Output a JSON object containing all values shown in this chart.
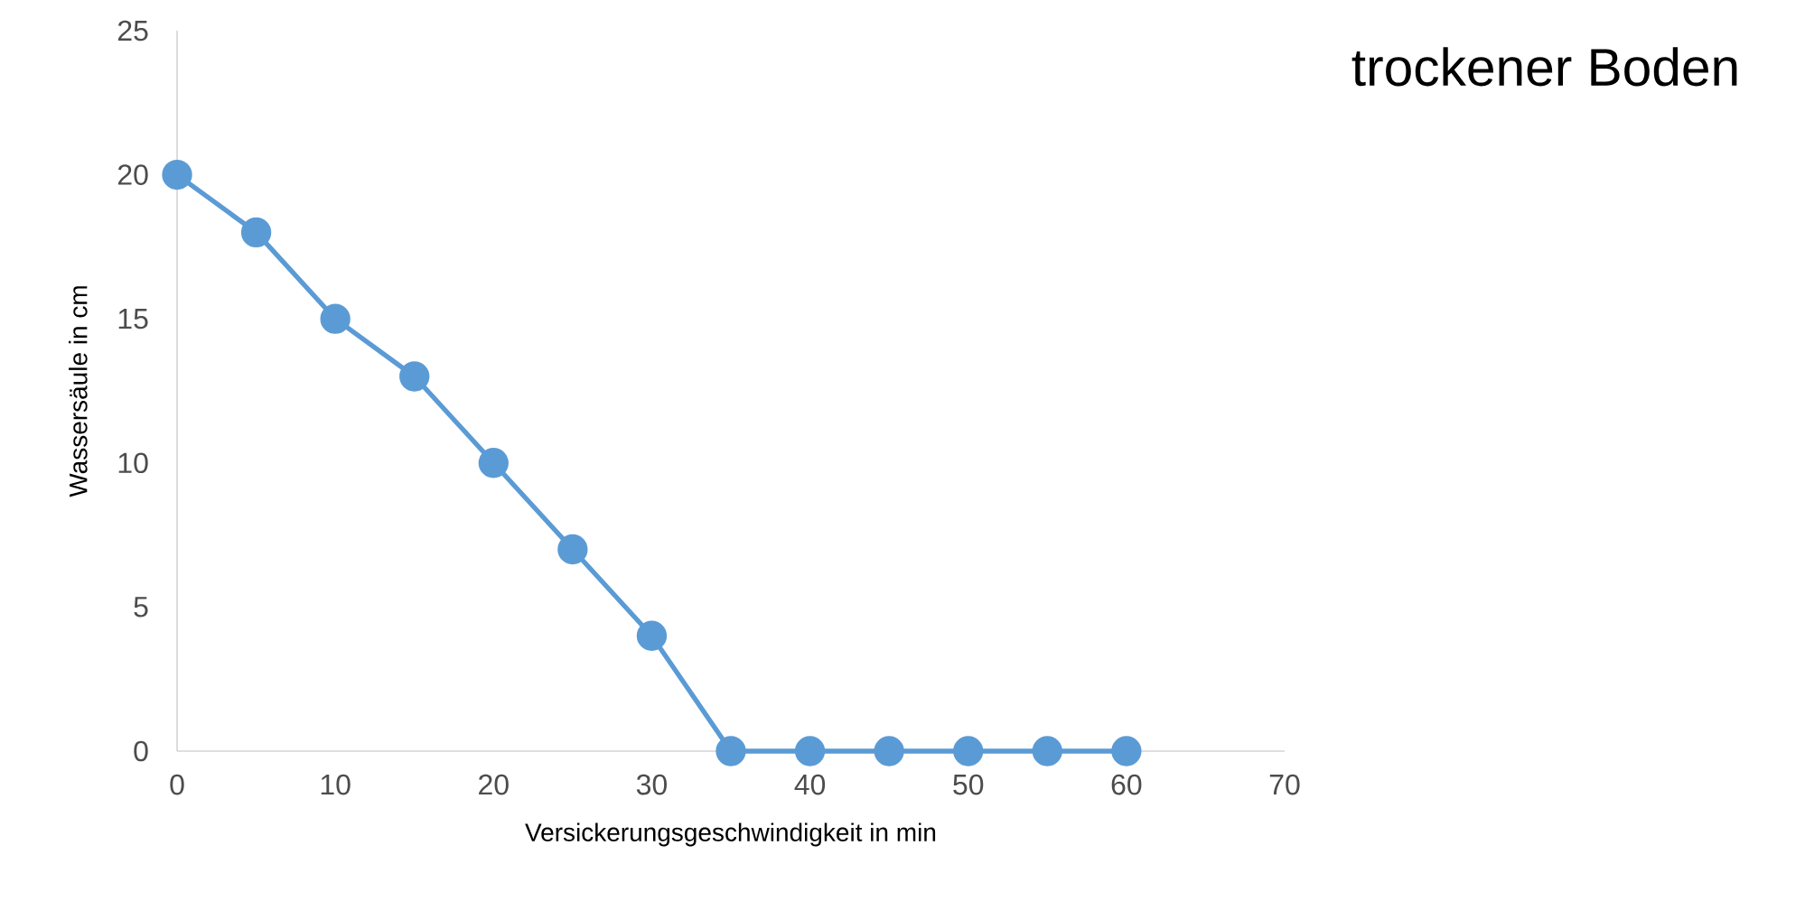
{
  "chart_data": {
    "type": "line",
    "title": "trockener Boden",
    "xlabel": "Versickerungsgeschwindigkeit in min",
    "ylabel": "Wassersäule in cm",
    "x": [
      0,
      5,
      10,
      15,
      20,
      25,
      30,
      35,
      40,
      45,
      50,
      55,
      60
    ],
    "series": [
      {
        "color": "#5b9bd5",
        "values": [
          20,
          18,
          15,
          13,
          10,
          7,
          4,
          0,
          0,
          0,
          0,
          0,
          0
        ]
      }
    ],
    "xlim": [
      0,
      70
    ],
    "ylim": [
      0,
      25
    ],
    "xticks": [
      0,
      10,
      20,
      30,
      40,
      50,
      60,
      70
    ],
    "yticks": [
      0,
      5,
      10,
      15,
      20,
      25
    ],
    "marker": "circle",
    "line_style": "solid"
  }
}
